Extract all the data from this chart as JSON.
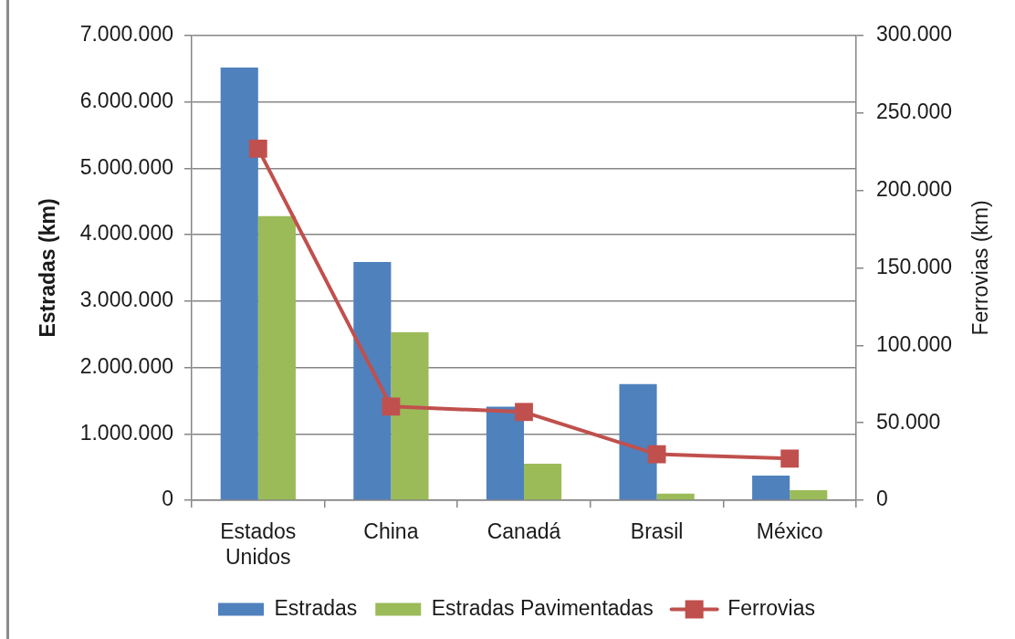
{
  "chart_data": {
    "type": "bar",
    "categories": [
      "Estados Unidos",
      "China",
      "Canadá",
      "Brasil",
      "México"
    ],
    "series": [
      {
        "name": "Estradas",
        "color": "#4f81bd",
        "values": [
          6520000,
          3590000,
          1410000,
          1750000,
          370000
        ]
      },
      {
        "name": "Estradas Pavimentadas",
        "color": "#9bbb59",
        "values": [
          4280000,
          2530000,
          550000,
          100000,
          150000
        ]
      },
      {
        "name": "Ferrovias",
        "type": "line",
        "axis": "y2",
        "color": "#c0504d",
        "values": [
          227000,
          60500,
          57000,
          29700,
          26900
        ]
      }
    ],
    "ylabel": "Estradas (km)",
    "y2label": "Ferrovias (km)",
    "ylim": [
      0,
      7000000
    ],
    "yticks": [
      {
        "value": 0,
        "label": "0"
      },
      {
        "value": 1000000,
        "label": "1.000.000"
      },
      {
        "value": 2000000,
        "label": "2.000.000"
      },
      {
        "value": 3000000,
        "label": "3.000.000"
      },
      {
        "value": 4000000,
        "label": "4.000.000"
      },
      {
        "value": 5000000,
        "label": "5.000.000"
      },
      {
        "value": 6000000,
        "label": "6.000.000"
      },
      {
        "value": 7000000,
        "label": "7.000.000"
      }
    ],
    "y2lim": [
      0,
      300000
    ],
    "y2ticks": [
      {
        "value": 0,
        "label": "0"
      },
      {
        "value": 50000,
        "label": "50.000"
      },
      {
        "value": 100000,
        "label": "100.000"
      },
      {
        "value": 150000,
        "label": "150.000"
      },
      {
        "value": 200000,
        "label": "200.000"
      },
      {
        "value": 250000,
        "label": "250.000"
      },
      {
        "value": 300000,
        "label": "300.000"
      }
    ],
    "grid": "y",
    "legend": "bottom",
    "marker": "square",
    "line_style": "solid"
  }
}
